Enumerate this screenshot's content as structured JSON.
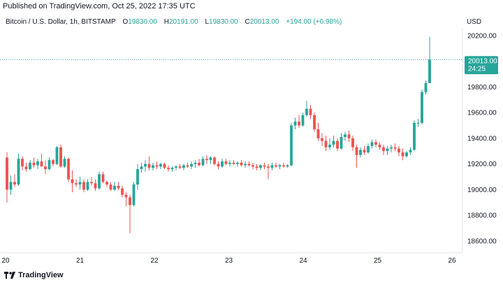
{
  "header": {
    "published": "Published on TradingView.com, Oct 25, 2022 17:35 UTC",
    "currency": "USD"
  },
  "legend": {
    "symbol": "Bitcoin / U.S. Dollar, 1h, BITSTAMP",
    "open_label": "O",
    "open": "19830.00",
    "high_label": "H",
    "high": "20191.00",
    "low_label": "L",
    "low": "19830.00",
    "close_label": "C",
    "close": "20013.00",
    "change": "+194.00 (+0.98%)"
  },
  "price_label": {
    "price": "20013.00",
    "countdown": "24:25"
  },
  "footer": {
    "brand": "TradingView"
  },
  "colors": {
    "up": "#26a69a",
    "down": "#ef5350",
    "text": "#131722",
    "axis": "#e0e3eb"
  },
  "chart_data": {
    "type": "candlestick",
    "y_ticks": [
      "20200.00",
      "20000.00",
      "19800.00",
      "19600.00",
      "19400.00",
      "19200.00",
      "19000.00",
      "18800.00",
      "18600.00"
    ],
    "x_ticks": [
      "20",
      "21",
      "22",
      "23",
      "24",
      "25",
      "26"
    ],
    "ylim": [
      18500,
      20250
    ],
    "last_price": 20013,
    "candles": [
      {
        "o": 19250,
        "h": 19290,
        "l": 18900,
        "c": 19000
      },
      {
        "o": 19000,
        "h": 19110,
        "l": 18960,
        "c": 19060
      },
      {
        "o": 19060,
        "h": 19120,
        "l": 19020,
        "c": 19040
      },
      {
        "o": 19040,
        "h": 19280,
        "l": 19030,
        "c": 19240
      },
      {
        "o": 19240,
        "h": 19260,
        "l": 19150,
        "c": 19180
      },
      {
        "o": 19180,
        "h": 19210,
        "l": 19140,
        "c": 19160
      },
      {
        "o": 19160,
        "h": 19230,
        "l": 19150,
        "c": 19210
      },
      {
        "o": 19210,
        "h": 19250,
        "l": 19170,
        "c": 19190
      },
      {
        "o": 19190,
        "h": 19240,
        "l": 19160,
        "c": 19220
      },
      {
        "o": 19220,
        "h": 19280,
        "l": 19180,
        "c": 19180
      },
      {
        "o": 19180,
        "h": 19230,
        "l": 19120,
        "c": 19160
      },
      {
        "o": 19160,
        "h": 19250,
        "l": 19150,
        "c": 19230
      },
      {
        "o": 19230,
        "h": 19240,
        "l": 19180,
        "c": 19200
      },
      {
        "o": 19200,
        "h": 19340,
        "l": 19190,
        "c": 19330
      },
      {
        "o": 19330,
        "h": 19350,
        "l": 19170,
        "c": 19180
      },
      {
        "o": 19180,
        "h": 19260,
        "l": 19170,
        "c": 19240
      },
      {
        "o": 19240,
        "h": 19250,
        "l": 19060,
        "c": 19080
      },
      {
        "o": 19080,
        "h": 19150,
        "l": 18980,
        "c": 19050
      },
      {
        "o": 19050,
        "h": 19080,
        "l": 19020,
        "c": 19040
      },
      {
        "o": 19040,
        "h": 19100,
        "l": 19000,
        "c": 19060
      },
      {
        "o": 19060,
        "h": 19080,
        "l": 18980,
        "c": 19000
      },
      {
        "o": 19000,
        "h": 19080,
        "l": 18990,
        "c": 19060
      },
      {
        "o": 19060,
        "h": 19100,
        "l": 19030,
        "c": 19050
      },
      {
        "o": 19050,
        "h": 19080,
        "l": 18990,
        "c": 19010
      },
      {
        "o": 19010,
        "h": 19140,
        "l": 19000,
        "c": 19120
      },
      {
        "o": 19120,
        "h": 19140,
        "l": 19050,
        "c": 19060
      },
      {
        "o": 19060,
        "h": 19070,
        "l": 19020,
        "c": 19040
      },
      {
        "o": 19040,
        "h": 19060,
        "l": 18990,
        "c": 19000
      },
      {
        "o": 19000,
        "h": 19060,
        "l": 18990,
        "c": 19030
      },
      {
        "o": 19030,
        "h": 19060,
        "l": 19000,
        "c": 19010
      },
      {
        "o": 19010,
        "h": 19030,
        "l": 18940,
        "c": 18960
      },
      {
        "o": 18960,
        "h": 18980,
        "l": 18870,
        "c": 18940
      },
      {
        "o": 18940,
        "h": 18960,
        "l": 18660,
        "c": 18880
      },
      {
        "o": 18880,
        "h": 19060,
        "l": 18870,
        "c": 19040
      },
      {
        "o": 19040,
        "h": 19200,
        "l": 19000,
        "c": 19160
      },
      {
        "o": 19160,
        "h": 19210,
        "l": 19130,
        "c": 19180
      },
      {
        "o": 19180,
        "h": 19230,
        "l": 19140,
        "c": 19200
      },
      {
        "o": 19200,
        "h": 19260,
        "l": 19150,
        "c": 19170
      },
      {
        "o": 19170,
        "h": 19210,
        "l": 19150,
        "c": 19190
      },
      {
        "o": 19190,
        "h": 19220,
        "l": 19160,
        "c": 19180
      },
      {
        "o": 19180,
        "h": 19210,
        "l": 19160,
        "c": 19200
      },
      {
        "o": 19200,
        "h": 19210,
        "l": 19160,
        "c": 19170
      },
      {
        "o": 19170,
        "h": 19190,
        "l": 19140,
        "c": 19160
      },
      {
        "o": 19160,
        "h": 19180,
        "l": 19140,
        "c": 19170
      },
      {
        "o": 19170,
        "h": 19190,
        "l": 19150,
        "c": 19180
      },
      {
        "o": 19180,
        "h": 19200,
        "l": 19160,
        "c": 19170
      },
      {
        "o": 19170,
        "h": 19200,
        "l": 19150,
        "c": 19190
      },
      {
        "o": 19190,
        "h": 19210,
        "l": 19170,
        "c": 19180
      },
      {
        "o": 19180,
        "h": 19220,
        "l": 19160,
        "c": 19200
      },
      {
        "o": 19200,
        "h": 19230,
        "l": 19170,
        "c": 19210
      },
      {
        "o": 19210,
        "h": 19240,
        "l": 19180,
        "c": 19190
      },
      {
        "o": 19190,
        "h": 19260,
        "l": 19180,
        "c": 19240
      },
      {
        "o": 19240,
        "h": 19270,
        "l": 19200,
        "c": 19230
      },
      {
        "o": 19230,
        "h": 19260,
        "l": 19200,
        "c": 19250
      },
      {
        "o": 19250,
        "h": 19260,
        "l": 19190,
        "c": 19200
      },
      {
        "o": 19200,
        "h": 19220,
        "l": 19160,
        "c": 19180
      },
      {
        "o": 19180,
        "h": 19240,
        "l": 19170,
        "c": 19220
      },
      {
        "o": 19220,
        "h": 19240,
        "l": 19190,
        "c": 19200
      },
      {
        "o": 19200,
        "h": 19230,
        "l": 19180,
        "c": 19210
      },
      {
        "o": 19210,
        "h": 19230,
        "l": 19190,
        "c": 19200
      },
      {
        "o": 19200,
        "h": 19220,
        "l": 19180,
        "c": 19210
      },
      {
        "o": 19210,
        "h": 19230,
        "l": 19180,
        "c": 19190
      },
      {
        "o": 19190,
        "h": 19220,
        "l": 19170,
        "c": 19200
      },
      {
        "o": 19200,
        "h": 19220,
        "l": 19180,
        "c": 19190
      },
      {
        "o": 19190,
        "h": 19210,
        "l": 19160,
        "c": 19180
      },
      {
        "o": 19180,
        "h": 19200,
        "l": 19150,
        "c": 19170
      },
      {
        "o": 19170,
        "h": 19200,
        "l": 19150,
        "c": 19190
      },
      {
        "o": 19190,
        "h": 19210,
        "l": 19160,
        "c": 19180
      },
      {
        "o": 19180,
        "h": 19200,
        "l": 19080,
        "c": 19170
      },
      {
        "o": 19170,
        "h": 19210,
        "l": 19150,
        "c": 19190
      },
      {
        "o": 19190,
        "h": 19210,
        "l": 19170,
        "c": 19180
      },
      {
        "o": 19180,
        "h": 19200,
        "l": 19160,
        "c": 19190
      },
      {
        "o": 19190,
        "h": 19210,
        "l": 19170,
        "c": 19180
      },
      {
        "o": 19180,
        "h": 19200,
        "l": 19170,
        "c": 19190
      },
      {
        "o": 19190,
        "h": 19520,
        "l": 19180,
        "c": 19500
      },
      {
        "o": 19500,
        "h": 19560,
        "l": 19470,
        "c": 19530
      },
      {
        "o": 19530,
        "h": 19580,
        "l": 19480,
        "c": 19500
      },
      {
        "o": 19500,
        "h": 19600,
        "l": 19490,
        "c": 19580
      },
      {
        "o": 19580,
        "h": 19690,
        "l": 19570,
        "c": 19630
      },
      {
        "o": 19630,
        "h": 19660,
        "l": 19550,
        "c": 19580
      },
      {
        "o": 19580,
        "h": 19600,
        "l": 19450,
        "c": 19470
      },
      {
        "o": 19470,
        "h": 19520,
        "l": 19380,
        "c": 19400
      },
      {
        "o": 19400,
        "h": 19440,
        "l": 19340,
        "c": 19380
      },
      {
        "o": 19380,
        "h": 19420,
        "l": 19300,
        "c": 19330
      },
      {
        "o": 19330,
        "h": 19400,
        "l": 19310,
        "c": 19350
      },
      {
        "o": 19350,
        "h": 19420,
        "l": 19330,
        "c": 19380
      },
      {
        "o": 19380,
        "h": 19400,
        "l": 19300,
        "c": 19320
      },
      {
        "o": 19320,
        "h": 19440,
        "l": 19310,
        "c": 19410
      },
      {
        "o": 19410,
        "h": 19450,
        "l": 19380,
        "c": 19430
      },
      {
        "o": 19430,
        "h": 19460,
        "l": 19370,
        "c": 19400
      },
      {
        "o": 19400,
        "h": 19420,
        "l": 19300,
        "c": 19330
      },
      {
        "o": 19330,
        "h": 19350,
        "l": 19170,
        "c": 19270
      },
      {
        "o": 19270,
        "h": 19330,
        "l": 19250,
        "c": 19310
      },
      {
        "o": 19310,
        "h": 19340,
        "l": 19270,
        "c": 19290
      },
      {
        "o": 19290,
        "h": 19360,
        "l": 19280,
        "c": 19340
      },
      {
        "o": 19340,
        "h": 19390,
        "l": 19320,
        "c": 19370
      },
      {
        "o": 19370,
        "h": 19390,
        "l": 19330,
        "c": 19350
      },
      {
        "o": 19350,
        "h": 19370,
        "l": 19310,
        "c": 19330
      },
      {
        "o": 19330,
        "h": 19350,
        "l": 19270,
        "c": 19300
      },
      {
        "o": 19300,
        "h": 19340,
        "l": 19270,
        "c": 19320
      },
      {
        "o": 19320,
        "h": 19350,
        "l": 19290,
        "c": 19330
      },
      {
        "o": 19330,
        "h": 19360,
        "l": 19300,
        "c": 19320
      },
      {
        "o": 19320,
        "h": 19340,
        "l": 19260,
        "c": 19290
      },
      {
        "o": 19290,
        "h": 19320,
        "l": 19230,
        "c": 19260
      },
      {
        "o": 19260,
        "h": 19300,
        "l": 19250,
        "c": 19290
      },
      {
        "o": 19290,
        "h": 19330,
        "l": 19270,
        "c": 19310
      },
      {
        "o": 19310,
        "h": 19540,
        "l": 19300,
        "c": 19520
      },
      {
        "o": 19520,
        "h": 19550,
        "l": 19490,
        "c": 19520
      },
      {
        "o": 19520,
        "h": 19780,
        "l": 19510,
        "c": 19760
      },
      {
        "o": 19760,
        "h": 19850,
        "l": 19740,
        "c": 19830
      },
      {
        "o": 19830,
        "h": 20191,
        "l": 19830,
        "c": 20013
      }
    ]
  }
}
